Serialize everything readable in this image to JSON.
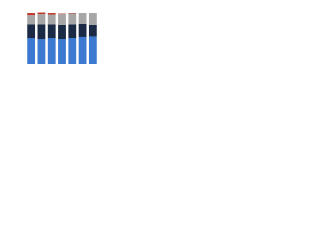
{
  "chart_data": {
    "type": "stacked-bar",
    "categories": [
      null,
      null,
      null,
      null,
      null,
      null,
      null
    ],
    "ylim": [
      0,
      100
    ],
    "series": [
      {
        "color": "#3b7ad0",
        "values": [
          50,
          48,
          50,
          48,
          50,
          52,
          53
        ]
      },
      {
        "color": "#1b2a45",
        "values": [
          26,
          28,
          26,
          27,
          26,
          25,
          22
        ]
      },
      {
        "color": "#a6a6a6",
        "values": [
          18,
          20,
          19,
          21,
          21,
          21,
          23
        ]
      },
      {
        "color": "#c0392b",
        "values": [
          4,
          3,
          3,
          1,
          1,
          0,
          0
        ]
      }
    ]
  }
}
